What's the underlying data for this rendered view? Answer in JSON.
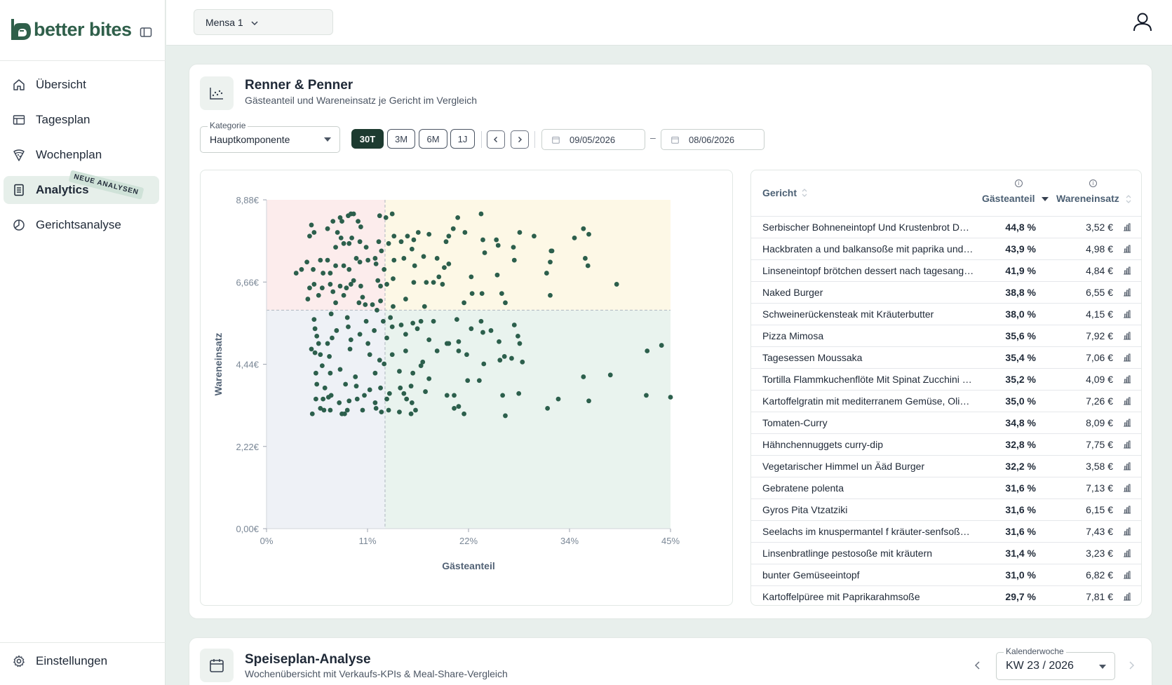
{
  "brand": {
    "name": "better bites",
    "colors": {
      "primary": "#2f5f4a",
      "accent_dark": "#1d3b30",
      "dot": "#2c5f4c"
    }
  },
  "sidebar": {
    "items": [
      {
        "label": "Übersicht",
        "icon": "home-icon"
      },
      {
        "label": "Tagesplan",
        "icon": "table-icon"
      },
      {
        "label": "Wochenplan",
        "icon": "pizza-icon"
      },
      {
        "label": "Analytics",
        "icon": "report-icon",
        "active": true,
        "badge": "NEUE ANALYSEN"
      },
      {
        "label": "Gerichtsanalyse",
        "icon": "pie-icon"
      }
    ],
    "settings_label": "Einstellungen"
  },
  "topbar": {
    "mensa": "Mensa 1"
  },
  "renner": {
    "title": "Renner & Penner",
    "subtitle": "Gästeanteil und Wareneinsatz je Gericht im Vergleich",
    "kategorie_label": "Kategorie",
    "kategorie_value": "Hauptkomponente",
    "ranges": [
      "30T",
      "3M",
      "6M",
      "1J"
    ],
    "active_range": "30T",
    "date_from": "09/05/2026",
    "date_dash": "–",
    "date_to": "08/06/2026"
  },
  "chart_data": {
    "type": "scatter",
    "xlabel": "Gästeanteil",
    "ylabel": "Wareneinsatz",
    "x_ticks": [
      "0%",
      "11%",
      "22%",
      "34%",
      "45%"
    ],
    "y_ticks": [
      "0,00€",
      "2,22€",
      "4,44€",
      "6,66€",
      "8,88€"
    ],
    "xlim": [
      0,
      45
    ],
    "ylim": [
      0,
      8.88
    ],
    "divider_x": 13.2,
    "divider_y": 5.9,
    "quadrant_colors": {
      "top_left": "#fcecec",
      "top_right": "#fdf8e6",
      "bottom_left": "#eef1f6",
      "bottom_right": "#e9f3ee"
    },
    "points": [
      [
        5.0,
        8.2
      ],
      [
        5.3,
        8.0
      ],
      [
        4.8,
        7.9
      ],
      [
        6.8,
        8.1
      ],
      [
        7.4,
        8.3
      ],
      [
        8.2,
        8.4
      ],
      [
        8.4,
        8.3
      ],
      [
        9.1,
        8.45
      ],
      [
        9.4,
        8.5
      ],
      [
        9.7,
        8.5
      ],
      [
        10.2,
        8.3
      ],
      [
        10.5,
        8.15
      ],
      [
        12.6,
        8.45
      ],
      [
        13.3,
        8.4
      ],
      [
        14.0,
        8.5
      ],
      [
        7.9,
        8.0
      ],
      [
        8.6,
        7.7
      ],
      [
        8.3,
        7.85
      ],
      [
        7.7,
        7.6
      ],
      [
        9.2,
        7.7
      ],
      [
        9.5,
        7.85
      ],
      [
        10.4,
        7.75
      ],
      [
        11.1,
        7.6
      ],
      [
        12.5,
        7.75
      ],
      [
        13.6,
        7.7
      ],
      [
        14.2,
        7.9
      ],
      [
        15.0,
        7.75
      ],
      [
        15.7,
        7.9
      ],
      [
        16.4,
        7.8
      ],
      [
        16.9,
        8.0
      ],
      [
        18.1,
        7.95
      ],
      [
        20.0,
        7.75
      ],
      [
        20.3,
        7.9
      ],
      [
        20.8,
        8.1
      ],
      [
        21.3,
        8.4
      ],
      [
        22.1,
        8.0
      ],
      [
        23.9,
        8.5
      ],
      [
        24.1,
        7.8
      ],
      [
        25.6,
        7.8
      ],
      [
        25.8,
        7.65
      ],
      [
        27.5,
        7.6
      ],
      [
        28.2,
        8.0
      ],
      [
        29.8,
        7.9
      ],
      [
        31.7,
        7.5
      ],
      [
        34.3,
        7.85
      ],
      [
        35.3,
        8.1
      ],
      [
        35.9,
        7.95
      ],
      [
        3.3,
        6.9
      ],
      [
        3.9,
        7.0
      ],
      [
        4.5,
        7.2
      ],
      [
        5.2,
        7.0
      ],
      [
        6.0,
        7.25
      ],
      [
        6.8,
        7.25
      ],
      [
        6.3,
        6.9
      ],
      [
        7.1,
        6.9
      ],
      [
        7.7,
        7.1
      ],
      [
        8.6,
        7.1
      ],
      [
        9.2,
        7.0
      ],
      [
        10.0,
        7.3
      ],
      [
        10.4,
        7.2
      ],
      [
        11.3,
        7.25
      ],
      [
        12.1,
        7.3
      ],
      [
        12.2,
        7.15
      ],
      [
        12.8,
        7.5
      ],
      [
        13.1,
        7.0
      ],
      [
        14.2,
        7.25
      ],
      [
        15.3,
        7.3
      ],
      [
        16.5,
        7.1
      ],
      [
        16.2,
        7.55
      ],
      [
        17.5,
        7.35
      ],
      [
        19.0,
        7.3
      ],
      [
        19.8,
        7.05
      ],
      [
        20.3,
        7.15
      ],
      [
        22.8,
        6.8
      ],
      [
        24.3,
        7.45
      ],
      [
        25.7,
        6.85
      ],
      [
        27.6,
        7.25
      ],
      [
        31.2,
        6.9
      ],
      [
        31.6,
        7.2
      ],
      [
        31.8,
        7.5
      ],
      [
        35.5,
        7.3
      ],
      [
        35.8,
        7.1
      ],
      [
        4.8,
        6.5
      ],
      [
        5.3,
        6.6
      ],
      [
        6.2,
        6.5
      ],
      [
        7.1,
        6.6
      ],
      [
        7.4,
        6.4
      ],
      [
        8.2,
        6.55
      ],
      [
        8.9,
        6.5
      ],
      [
        9.4,
        6.6
      ],
      [
        9.7,
        6.7
      ],
      [
        10.5,
        6.55
      ],
      [
        12.4,
        6.7
      ],
      [
        12.7,
        6.55
      ],
      [
        13.4,
        6.6
      ],
      [
        14.1,
        6.75
      ],
      [
        16.4,
        6.65
      ],
      [
        17.8,
        6.65
      ],
      [
        18.6,
        6.65
      ],
      [
        19.2,
        6.8
      ],
      [
        19.6,
        6.6
      ],
      [
        22.9,
        6.35
      ],
      [
        24.0,
        6.35
      ],
      [
        26.2,
        6.35
      ],
      [
        39.0,
        6.6
      ],
      [
        4.6,
        6.2
      ],
      [
        5.8,
        6.3
      ],
      [
        7.7,
        6.1
      ],
      [
        8.6,
        6.3
      ],
      [
        10.3,
        6.1
      ],
      [
        10.7,
        6.25
      ],
      [
        11.0,
        6.05
      ],
      [
        11.8,
        6.05
      ],
      [
        12.7,
        6.15
      ],
      [
        14.1,
        6.0
      ],
      [
        15.5,
        6.2
      ],
      [
        17.6,
        6.0
      ],
      [
        22.0,
        6.1
      ],
      [
        26.6,
        6.1
      ],
      [
        31.6,
        6.3
      ],
      [
        5.3,
        5.65
      ],
      [
        7.2,
        5.8
      ],
      [
        9.0,
        5.7
      ],
      [
        11.1,
        5.6
      ],
      [
        12.3,
        5.9
      ],
      [
        13.0,
        5.6
      ],
      [
        13.8,
        5.7
      ],
      [
        15.0,
        5.5
      ],
      [
        16.3,
        5.55
      ],
      [
        17.2,
        5.6
      ],
      [
        18.6,
        5.6
      ],
      [
        21.2,
        5.65
      ],
      [
        23.9,
        5.6
      ],
      [
        5.4,
        5.4
      ],
      [
        5.6,
        5.2
      ],
      [
        5.8,
        5.0
      ],
      [
        6.8,
        5.0
      ],
      [
        7.3,
        5.15
      ],
      [
        7.8,
        5.35
      ],
      [
        9.1,
        5.45
      ],
      [
        9.4,
        5.1
      ],
      [
        10.4,
        5.25
      ],
      [
        11.3,
        5.0
      ],
      [
        12.0,
        5.35
      ],
      [
        13.4,
        5.15
      ],
      [
        14.0,
        5.45
      ],
      [
        15.5,
        5.25
      ],
      [
        16.8,
        5.4
      ],
      [
        18.1,
        5.1
      ],
      [
        20.1,
        5.0
      ],
      [
        20.3,
        5.0
      ],
      [
        21.4,
        5.05
      ],
      [
        22.8,
        5.4
      ],
      [
        24.1,
        5.3
      ],
      [
        25.0,
        5.35
      ],
      [
        25.9,
        5.05
      ],
      [
        27.6,
        5.5
      ],
      [
        28.0,
        5.2
      ],
      [
        28.2,
        5.0
      ],
      [
        5.0,
        4.85
      ],
      [
        5.4,
        4.75
      ],
      [
        6.0,
        4.7
      ],
      [
        7.0,
        4.65
      ],
      [
        9.3,
        4.85
      ],
      [
        11.5,
        4.7
      ],
      [
        12.6,
        4.55
      ],
      [
        14.0,
        4.7
      ],
      [
        15.5,
        4.8
      ],
      [
        17.4,
        4.5
      ],
      [
        19.0,
        4.8
      ],
      [
        21.4,
        4.8
      ],
      [
        22.3,
        4.7
      ],
      [
        24.2,
        4.45
      ],
      [
        26.0,
        4.55
      ],
      [
        26.5,
        4.65
      ],
      [
        27.3,
        4.6
      ],
      [
        28.5,
        4.5
      ],
      [
        42.4,
        4.8
      ],
      [
        44.0,
        4.95
      ],
      [
        5.5,
        4.2
      ],
      [
        6.2,
        4.4
      ],
      [
        7.1,
        4.2
      ],
      [
        8.2,
        4.3
      ],
      [
        9.9,
        4.1
      ],
      [
        12.1,
        4.2
      ],
      [
        13.1,
        4.45
      ],
      [
        14.8,
        4.25
      ],
      [
        16.3,
        4.2
      ],
      [
        17.2,
        4.4
      ],
      [
        18.1,
        4.05
      ],
      [
        22.4,
        4.0
      ],
      [
        23.7,
        4.0
      ],
      [
        35.3,
        4.1
      ],
      [
        38.3,
        4.15
      ],
      [
        5.6,
        3.9
      ],
      [
        6.5,
        3.8
      ],
      [
        7.2,
        3.6
      ],
      [
        8.8,
        3.9
      ],
      [
        10.0,
        3.85
      ],
      [
        11.5,
        3.75
      ],
      [
        12.7,
        3.8
      ],
      [
        13.7,
        3.65
      ],
      [
        14.9,
        3.8
      ],
      [
        15.3,
        3.65
      ],
      [
        16.1,
        3.85
      ],
      [
        17.7,
        3.7
      ],
      [
        20.1,
        3.6
      ],
      [
        20.9,
        3.6
      ],
      [
        26.3,
        3.6
      ],
      [
        28.1,
        3.65
      ],
      [
        32.5,
        3.5
      ],
      [
        42.3,
        3.6
      ],
      [
        45.0,
        3.55
      ],
      [
        5.5,
        3.5
      ],
      [
        6.3,
        3.5
      ],
      [
        6.9,
        3.55
      ],
      [
        8.1,
        3.4
      ],
      [
        9.2,
        3.45
      ],
      [
        10.1,
        3.5
      ],
      [
        10.9,
        3.6
      ],
      [
        12.1,
        3.4
      ],
      [
        13.4,
        3.5
      ],
      [
        15.6,
        3.5
      ],
      [
        16.2,
        3.4
      ],
      [
        21.4,
        3.3
      ],
      [
        31.3,
        3.25
      ],
      [
        35.9,
        3.45
      ],
      [
        5.1,
        3.1
      ],
      [
        6.0,
        3.25
      ],
      [
        6.4,
        3.2
      ],
      [
        7.1,
        3.2
      ],
      [
        8.4,
        3.1
      ],
      [
        8.7,
        3.1
      ],
      [
        9.0,
        3.2
      ],
      [
        10.7,
        3.2
      ],
      [
        12.2,
        3.25
      ],
      [
        12.8,
        3.15
      ],
      [
        13.6,
        3.2
      ],
      [
        14.8,
        3.15
      ],
      [
        16.1,
        3.1
      ],
      [
        16.6,
        3.2
      ],
      [
        20.9,
        3.25
      ],
      [
        22.0,
        3.1
      ],
      [
        26.6,
        3.05
      ]
    ]
  },
  "table": {
    "col_gericht": "Gericht",
    "col_share": "Gästeanteil",
    "col_cost": "Wareneinsatz",
    "rows": [
      {
        "name": "Serbischer Bohneneintopf Und Krustenbrot Dessert",
        "share": "44,8 %",
        "cost": "3,52 €"
      },
      {
        "name": "Hackbraten a und balkansoße mit paprika und reis",
        "share": "43,9 %",
        "cost": "4,98 €"
      },
      {
        "name": "Linseneintopf brötchen dessert nach tagesangebot",
        "share": "41,9 %",
        "cost": "4,84 €"
      },
      {
        "name": "Naked Burger",
        "share": "38,8 %",
        "cost": "6,55 €"
      },
      {
        "name": "Schweinerückensteak mit Kräuterbutter",
        "share": "38,0 %",
        "cost": "4,15 €"
      },
      {
        "name": "Pizza Mimosa",
        "share": "35,6 %",
        "cost": "7,92 €"
      },
      {
        "name": "Tagesessen Moussaka",
        "share": "35,4 %",
        "cost": "7,06 €"
      },
      {
        "name": "Tortilla Flammkuchenflöte Mit Spinat Zucchini Feta",
        "share": "35,2 %",
        "cost": "4,09 €"
      },
      {
        "name": "Kartoffelgratin mit mediterranem Gemüse, Oliven",
        "share": "35,0 %",
        "cost": "7,26 €"
      },
      {
        "name": "Tomaten-Curry",
        "share": "34,8 %",
        "cost": "8,09 €"
      },
      {
        "name": "Hähnchennuggets curry-dip",
        "share": "32,8 %",
        "cost": "7,75 €"
      },
      {
        "name": "Vegetarischer Himmel un Ääd Burger",
        "share": "32,2 %",
        "cost": "3,58 €"
      },
      {
        "name": "Gebratene polenta",
        "share": "31,6 %",
        "cost": "7,13 €"
      },
      {
        "name": "Gyros Pita Vtzatziki",
        "share": "31,6 %",
        "cost": "6,15 €"
      },
      {
        "name": "Seelachs im knuspermantel f kräuter-senfsoße dazu",
        "share": "31,6 %",
        "cost": "7,43 €"
      },
      {
        "name": "Linsenbratlinge pestosoße mit kräutern",
        "share": "31,4 %",
        "cost": "3,23 €"
      },
      {
        "name": "bunter Gemüseeintopf",
        "share": "31,0 %",
        "cost": "6,82 €"
      },
      {
        "name": "Kartoffelpüree mit Paprikarahmsoße",
        "share": "29,7 %",
        "cost": "7,81 €"
      }
    ]
  },
  "speiseplan": {
    "title": "Speiseplan-Analyse",
    "subtitle": "Wochenübersicht mit Verkaufs-KPIs & Meal-Share-Vergleich",
    "kw_label": "Kalenderwoche",
    "kw_value": "KW 23 / 2026"
  }
}
